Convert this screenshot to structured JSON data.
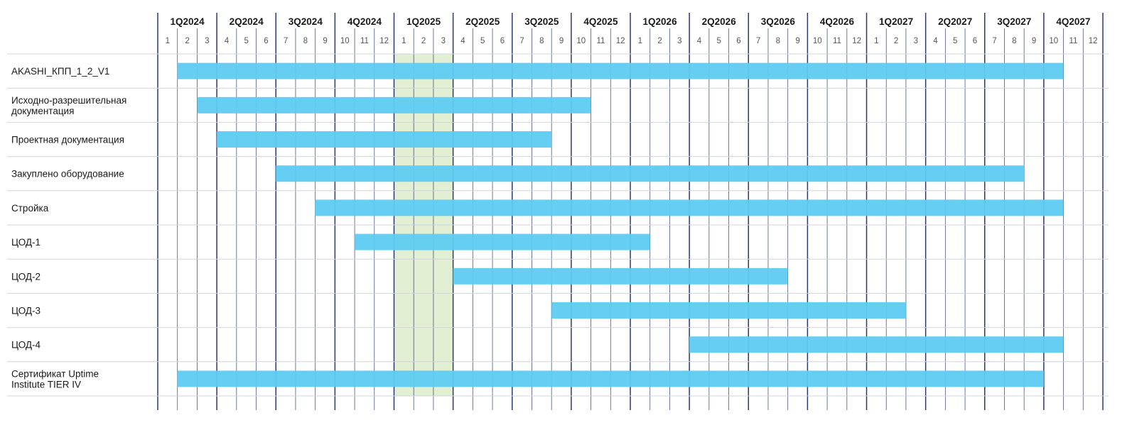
{
  "chart_data": {
    "type": "gantt",
    "timeline_start": "2024-01",
    "timeline_end": "2027-12",
    "quarters": [
      "1Q2024",
      "2Q2024",
      "3Q2024",
      "4Q2024",
      "1Q2025",
      "2Q2025",
      "3Q2025",
      "4Q2025",
      "1Q2026",
      "2Q2026",
      "3Q2026",
      "4Q2026",
      "1Q2027",
      "2Q2027",
      "3Q2027",
      "4Q2027"
    ],
    "months": [
      "1",
      "2",
      "3",
      "4",
      "5",
      "6",
      "7",
      "8",
      "9",
      "10",
      "11",
      "12",
      "1",
      "2",
      "3",
      "4",
      "5",
      "6",
      "7",
      "8",
      "9",
      "10",
      "11",
      "12",
      "1",
      "2",
      "3",
      "4",
      "5",
      "6",
      "7",
      "8",
      "9",
      "10",
      "11",
      "12",
      "1",
      "2",
      "3",
      "4",
      "5",
      "6",
      "7",
      "8",
      "9",
      "10",
      "11",
      "12"
    ],
    "highlight": {
      "start": "2025-01",
      "end": "2025-03",
      "color": "#e2efd3"
    },
    "bar_color": "#5ecbf2",
    "tasks": [
      {
        "label": "AKASHI_КПП_1_2_V1",
        "start": "2024-02",
        "end": "2027-10"
      },
      {
        "label": "Исходно-разрешительная\nдокументация",
        "start": "2024-03",
        "end": "2025-10"
      },
      {
        "label": "Проектная документация",
        "start": "2024-04",
        "end": "2025-08"
      },
      {
        "label": "Закуплено оборудование",
        "start": "2024-07",
        "end": "2027-08"
      },
      {
        "label": "Стройка",
        "start": "2024-09",
        "end": "2027-10"
      },
      {
        "label": "ЦОД-1",
        "start": "2024-11",
        "end": "2026-01"
      },
      {
        "label": "ЦОД-2",
        "start": "2025-04",
        "end": "2026-08"
      },
      {
        "label": "ЦОД-3",
        "start": "2025-09",
        "end": "2027-02"
      },
      {
        "label": "ЦОД-4",
        "start": "2026-04",
        "end": "2027-10"
      },
      {
        "label": "Сертификат Uptime\nInstitute TIER IV",
        "start": "2024-02",
        "end": "2027-09"
      }
    ]
  }
}
